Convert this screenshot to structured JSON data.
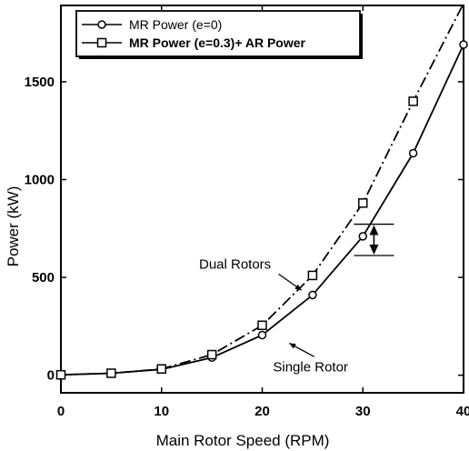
{
  "chart_data": {
    "type": "line",
    "title": "",
    "xlabel": "Main Rotor Speed (RPM)",
    "ylabel": "Power (kW)",
    "xlim": [
      0,
      40
    ],
    "ylim": [
      -90,
      1890
    ],
    "x_ticks": [
      0,
      10,
      20,
      30,
      40
    ],
    "x_tick_labels": [
      "0",
      "10",
      "20",
      "30",
      "40"
    ],
    "y_ticks": [
      0,
      500,
      1000,
      1500
    ],
    "y_tick_labels": [
      "0",
      "500",
      "1000",
      "1500"
    ],
    "grid": false,
    "legend_position": "top-left",
    "series": [
      {
        "name": "MR Power (e=0)",
        "marker": "circle",
        "line_style": "solid",
        "x": [
          0,
          5,
          10,
          15,
          20,
          25,
          30,
          35,
          40
        ],
        "y": [
          2,
          10,
          30,
          90,
          205,
          410,
          710,
          1135,
          1690
        ]
      },
      {
        "name": "MR Power (e=0.3)+ AR Power",
        "marker": "square",
        "line_style": "dash-dot",
        "x": [
          0,
          5,
          10,
          15,
          20,
          25,
          30,
          35,
          41
        ],
        "y": [
          2,
          10,
          32,
          105,
          255,
          510,
          880,
          1400,
          2000
        ]
      }
    ],
    "annotations": [
      {
        "text": "Dual Rotors",
        "target_x": 24,
        "target_y": 420,
        "x": 17.3,
        "y": 545
      },
      {
        "text": "Single Rotor",
        "target_x": 22.5,
        "target_y": 210,
        "x": 24.8,
        "y": 20
      }
    ],
    "difference_marker": {
      "x": 31.1,
      "y_low": 612,
      "y_high": 772
    }
  },
  "colors": {
    "line": "#000000",
    "background": "#ffffff"
  }
}
